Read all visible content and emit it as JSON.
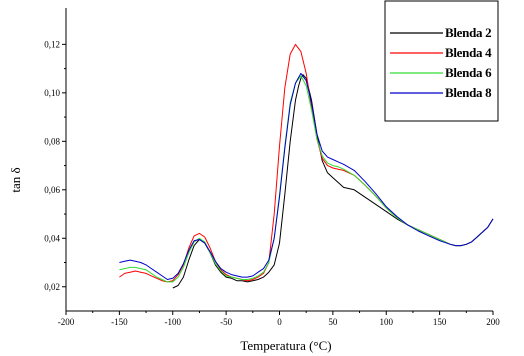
{
  "chart_data": {
    "type": "line",
    "xlabel": "Temperatura (°C)",
    "ylabel": "tan δ",
    "xlim": [
      -200,
      200
    ],
    "ylim": [
      0.01,
      0.135
    ],
    "xticks": [
      "-200",
      "-150",
      "-100",
      "-50",
      "0",
      "50",
      "100",
      "150",
      "200"
    ],
    "yticks": [
      "0,02",
      "0,04",
      "0,06",
      "0,08",
      "0,10",
      "0,12"
    ],
    "legend_position": "top-right",
    "grid": false,
    "series": [
      {
        "name": "Blenda 2",
        "color": "#000000",
        "x": [
          -100,
          -95,
          -90,
          -85,
          -80,
          -75,
          -70,
          -65,
          -60,
          -55,
          -50,
          -45,
          -40,
          -35,
          -30,
          -25,
          -20,
          -15,
          -10,
          -5,
          0,
          5,
          10,
          15,
          18,
          20,
          22,
          25,
          30,
          35,
          40,
          45,
          50,
          55,
          60,
          70,
          80,
          90,
          100,
          110,
          120,
          130,
          140,
          150,
          160,
          165,
          170,
          175,
          180,
          185,
          190,
          195,
          200
        ],
        "y": [
          0.0195,
          0.0205,
          0.024,
          0.031,
          0.037,
          0.0395,
          0.038,
          0.034,
          0.029,
          0.026,
          0.024,
          0.0235,
          0.0225,
          0.0225,
          0.022,
          0.0225,
          0.023,
          0.024,
          0.026,
          0.029,
          0.038,
          0.058,
          0.08,
          0.097,
          0.103,
          0.106,
          0.1075,
          0.106,
          0.097,
          0.083,
          0.072,
          0.067,
          0.065,
          0.063,
          0.061,
          0.06,
          0.057,
          0.054,
          0.051,
          0.048,
          0.0455,
          0.0435,
          0.0415,
          0.0395,
          0.0375,
          0.037,
          0.037,
          0.0375,
          0.0385,
          0.0405,
          0.0425,
          0.0445,
          0.048
        ]
      },
      {
        "name": "Blenda 4",
        "color": "#ff0000",
        "x": [
          -150,
          -145,
          -140,
          -135,
          -130,
          -125,
          -120,
          -115,
          -110,
          -105,
          -100,
          -95,
          -90,
          -85,
          -80,
          -75,
          -70,
          -65,
          -60,
          -55,
          -50,
          -45,
          -40,
          -35,
          -30,
          -25,
          -20,
          -15,
          -10,
          -5,
          0,
          5,
          10,
          15,
          20,
          25,
          30,
          35,
          40,
          45,
          50,
          55,
          60,
          70,
          80,
          90,
          100,
          110,
          120,
          130,
          140,
          150,
          160,
          165,
          170,
          175,
          180,
          185,
          190,
          195,
          200
        ],
        "y": [
          0.024,
          0.0255,
          0.026,
          0.0265,
          0.026,
          0.0255,
          0.0245,
          0.0235,
          0.0225,
          0.022,
          0.0225,
          0.025,
          0.029,
          0.036,
          0.041,
          0.042,
          0.0405,
          0.036,
          0.0305,
          0.027,
          0.025,
          0.024,
          0.0235,
          0.023,
          0.0225,
          0.023,
          0.024,
          0.0255,
          0.03,
          0.05,
          0.078,
          0.102,
          0.116,
          0.12,
          0.117,
          0.108,
          0.094,
          0.081,
          0.073,
          0.07,
          0.069,
          0.0685,
          0.068,
          0.066,
          0.062,
          0.0575,
          0.0525,
          0.0485,
          0.0455,
          0.0435,
          0.0415,
          0.0395,
          0.0375,
          0.037,
          0.037,
          0.0375,
          0.0385,
          0.0405,
          0.0425,
          0.0445,
          0.048
        ]
      },
      {
        "name": "Blenda 6",
        "color": "#33dd33",
        "x": [
          -150,
          -145,
          -140,
          -135,
          -130,
          -125,
          -120,
          -115,
          -110,
          -105,
          -100,
          -95,
          -90,
          -85,
          -80,
          -75,
          -70,
          -65,
          -60,
          -55,
          -50,
          -45,
          -40,
          -35,
          -30,
          -25,
          -20,
          -15,
          -10,
          -5,
          0,
          5,
          10,
          15,
          20,
          25,
          30,
          35,
          40,
          45,
          50,
          55,
          60,
          70,
          80,
          90,
          100,
          110,
          120,
          130,
          140,
          150,
          160,
          165,
          170,
          175,
          180,
          185,
          190,
          195,
          200
        ],
        "y": [
          0.027,
          0.0275,
          0.028,
          0.028,
          0.0275,
          0.027,
          0.0255,
          0.024,
          0.023,
          0.022,
          0.022,
          0.024,
          0.028,
          0.034,
          0.0385,
          0.04,
          0.0385,
          0.034,
          0.0295,
          0.0265,
          0.0245,
          0.024,
          0.0235,
          0.023,
          0.023,
          0.0235,
          0.0245,
          0.026,
          0.03,
          0.04,
          0.058,
          0.078,
          0.096,
          0.104,
          0.107,
          0.103,
          0.093,
          0.081,
          0.074,
          0.071,
          0.07,
          0.0695,
          0.0685,
          0.066,
          0.062,
          0.0575,
          0.0525,
          0.0485,
          0.0455,
          0.0435,
          0.0415,
          0.0395,
          0.0375,
          0.037,
          0.037,
          0.0375,
          0.0385,
          0.0405,
          0.0425,
          0.0445,
          0.048
        ]
      },
      {
        "name": "Blenda 8",
        "color": "#0000cc",
        "x": [
          -150,
          -145,
          -140,
          -135,
          -130,
          -125,
          -120,
          -115,
          -110,
          -105,
          -100,
          -95,
          -90,
          -85,
          -80,
          -75,
          -70,
          -65,
          -60,
          -55,
          -50,
          -45,
          -40,
          -35,
          -30,
          -25,
          -20,
          -15,
          -10,
          -5,
          0,
          5,
          10,
          15,
          20,
          25,
          30,
          35,
          40,
          45,
          50,
          55,
          60,
          70,
          80,
          90,
          100,
          110,
          120,
          130,
          140,
          150,
          160,
          165,
          170,
          175,
          180,
          185,
          190,
          195,
          200
        ],
        "y": [
          0.03,
          0.0305,
          0.031,
          0.0305,
          0.03,
          0.029,
          0.0275,
          0.026,
          0.0245,
          0.023,
          0.0235,
          0.0255,
          0.0295,
          0.035,
          0.039,
          0.0395,
          0.038,
          0.0345,
          0.0305,
          0.0275,
          0.026,
          0.025,
          0.0245,
          0.024,
          0.024,
          0.0245,
          0.026,
          0.0275,
          0.031,
          0.04,
          0.057,
          0.077,
          0.095,
          0.104,
          0.108,
          0.105,
          0.096,
          0.083,
          0.076,
          0.0735,
          0.0725,
          0.0715,
          0.0705,
          0.068,
          0.0635,
          0.0585,
          0.053,
          0.049,
          0.0455,
          0.043,
          0.041,
          0.039,
          0.0375,
          0.037,
          0.037,
          0.0375,
          0.0385,
          0.0405,
          0.0425,
          0.0445,
          0.048
        ]
      }
    ]
  }
}
